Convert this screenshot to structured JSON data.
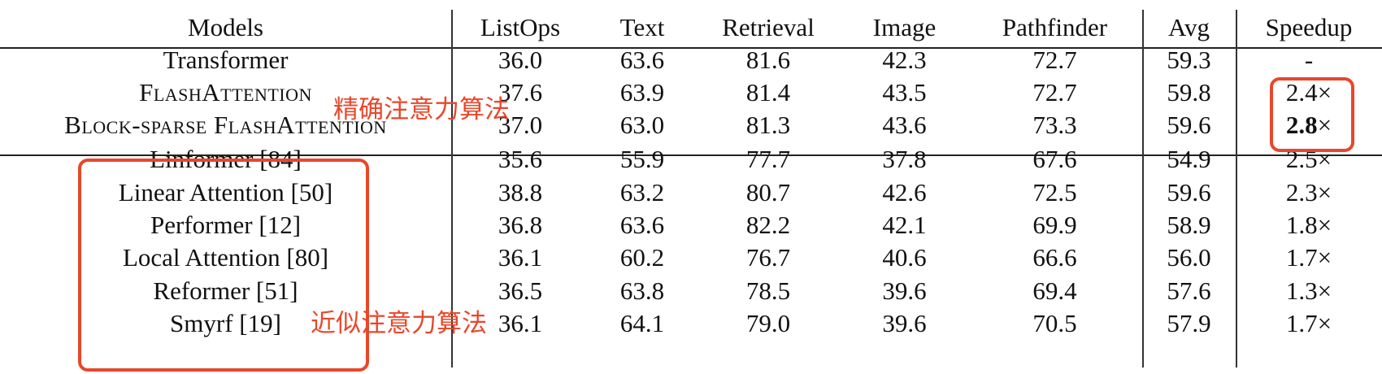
{
  "columns": [
    "Models",
    "ListOps",
    "Text",
    "Retrieval",
    "Image",
    "Pathfinder",
    "Avg",
    "Speedup"
  ],
  "exact_group": [
    {
      "model": "Transformer",
      "smallcaps": false,
      "values": [
        "36.0",
        "63.6",
        "81.6",
        "42.3",
        "72.7",
        "59.3",
        "-"
      ]
    },
    {
      "model": "FlashAttention",
      "smallcaps": true,
      "values": [
        "37.6",
        "63.9",
        "81.4",
        "43.5",
        "72.7",
        "59.8",
        "2.4×"
      ]
    },
    {
      "model": "Block-sparse FlashAttention",
      "smallcaps": true,
      "values": [
        "37.0",
        "63.0",
        "81.3",
        "43.6",
        "73.3",
        "59.6",
        "2.8×"
      ],
      "speedup_bold_part": "2.8",
      "speedup_rest": "×"
    }
  ],
  "approx_group": [
    {
      "model": "Linformer [84]",
      "values": [
        "35.6",
        "55.9",
        "77.7",
        "37.8",
        "67.6",
        "54.9",
        "2.5×"
      ]
    },
    {
      "model": "Linear Attention [50]",
      "values": [
        "38.8",
        "63.2",
        "80.7",
        "42.6",
        "72.5",
        "59.6",
        "2.3×"
      ]
    },
    {
      "model": "Performer [12]",
      "values": [
        "36.8",
        "63.6",
        "82.2",
        "42.1",
        "69.9",
        "58.9",
        "1.8×"
      ]
    },
    {
      "model": "Local Attention [80]",
      "values": [
        "36.1",
        "60.2",
        "76.7",
        "40.6",
        "66.6",
        "56.0",
        "1.7×"
      ]
    },
    {
      "model": "Reformer [51]",
      "values": [
        "36.5",
        "63.8",
        "78.5",
        "39.6",
        "69.4",
        "57.6",
        "1.3×"
      ]
    },
    {
      "model": "Smyrf [19]",
      "values": [
        "36.1",
        "64.1",
        "79.0",
        "39.6",
        "70.5",
        "57.9",
        "1.7×"
      ]
    }
  ],
  "annotations": {
    "exact_label": "精确注意力算法",
    "approx_label": "近似注意力算法"
  },
  "colors": {
    "annotation": "#e8472b",
    "text": "#111111"
  }
}
